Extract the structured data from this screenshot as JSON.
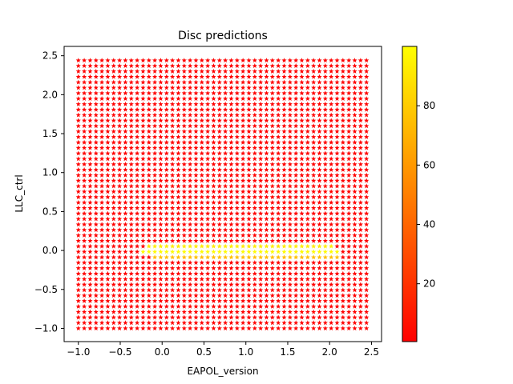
{
  "chart_data": {
    "type": "scatter",
    "title": "Disc predictions",
    "xlabel": "EAPOL_version",
    "ylabel": "LLC_ctrl",
    "xlim": [
      -1.17,
      2.62
    ],
    "ylim": [
      -1.17,
      2.62
    ],
    "xticks": [
      "−1.0",
      "−0.5",
      "0.0",
      "0.5",
      "1.0",
      "1.5",
      "2.0",
      "2.5"
    ],
    "yticks": [
      "−1.0",
      "−0.5",
      "0.0",
      "0.5",
      "1.0",
      "1.5",
      "2.0",
      "2.5"
    ],
    "xtick_values": [
      -1.0,
      -0.5,
      0.0,
      0.5,
      1.0,
      1.5,
      2.0,
      2.5
    ],
    "ytick_values": [
      -1.0,
      -0.5,
      0.0,
      0.5,
      1.0,
      1.5,
      2.0,
      2.5
    ],
    "grid": false,
    "marker": "star",
    "x_grid": {
      "start": -1.0,
      "stop": 2.44,
      "count": 50
    },
    "y_grid": {
      "start": -1.0,
      "stop": 2.44,
      "count": 50
    },
    "default_value": 1,
    "high_band": {
      "y": 0.0,
      "x_from": -0.25,
      "x_to": 2.1,
      "value": 99
    },
    "band_neighbors": [
      {
        "y": 0.07,
        "x_from": -0.2,
        "x_to": 2.05,
        "value": 93
      },
      {
        "y": -0.07,
        "x_from": -0.1,
        "x_to": 2.1,
        "value": 75
      }
    ],
    "colormap": "autumn",
    "colorbar": {
      "range": [
        0.5,
        100
      ],
      "ticks": [
        "20",
        "40",
        "60",
        "80"
      ],
      "tick_values": [
        20,
        40,
        60,
        80
      ]
    },
    "colors": {
      "low": "#ff0000",
      "high": "#ffff00"
    }
  }
}
